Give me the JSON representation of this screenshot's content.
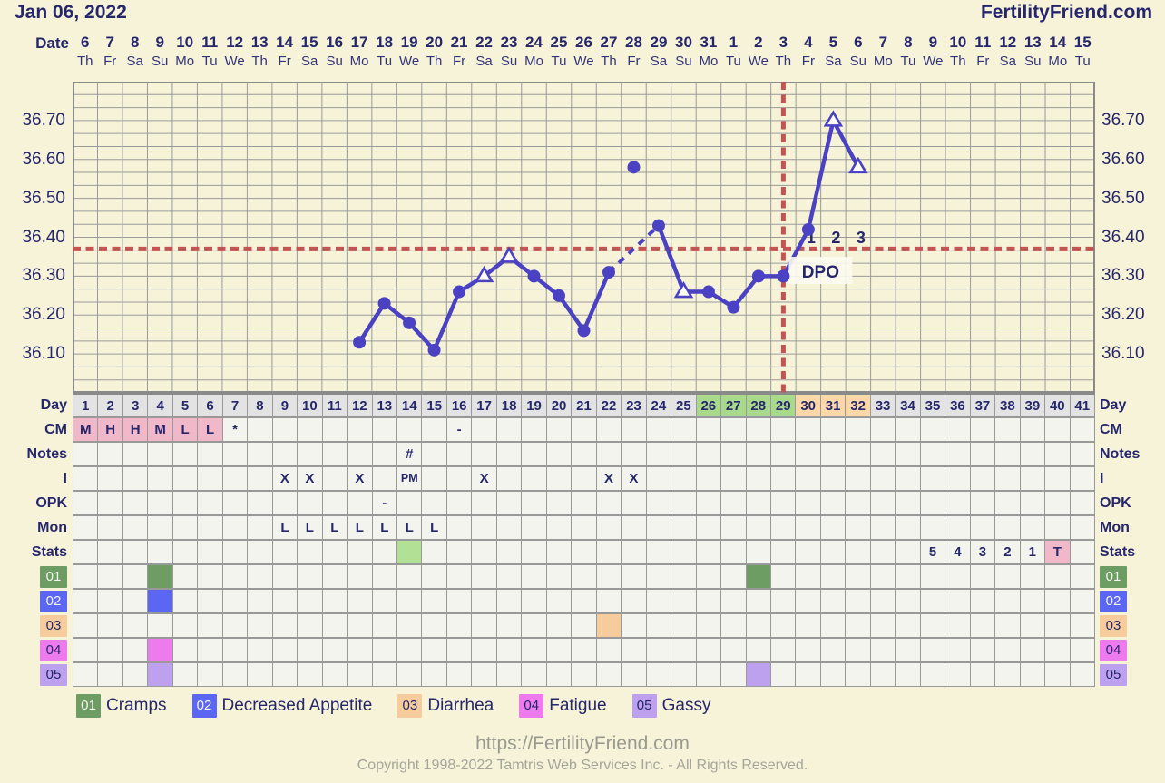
{
  "header": {
    "title": "Jan 06, 2022",
    "brand": "FertilityFriend.com"
  },
  "date_header": {
    "label": "Date",
    "dates": [
      "6",
      "7",
      "8",
      "9",
      "10",
      "11",
      "12",
      "13",
      "14",
      "15",
      "16",
      "17",
      "18",
      "19",
      "20",
      "21",
      "22",
      "23",
      "24",
      "25",
      "26",
      "27",
      "28",
      "29",
      "30",
      "31",
      "1",
      "2",
      "3",
      "4",
      "5",
      "6",
      "7",
      "8",
      "9",
      "10",
      "11",
      "12",
      "13",
      "14",
      "15"
    ],
    "weekdays": [
      "Th",
      "Fr",
      "Sa",
      "Su",
      "Mo",
      "Tu",
      "We",
      "Th",
      "Fr",
      "Sa",
      "Su",
      "Mo",
      "Tu",
      "We",
      "Th",
      "Fr",
      "Sa",
      "Su",
      "Mo",
      "Tu",
      "We",
      "Th",
      "Fr",
      "Sa",
      "Su",
      "Mo",
      "Tu",
      "We",
      "Th",
      "Fr",
      "Sa",
      "Su",
      "Mo",
      "Tu",
      "We",
      "Th",
      "Fr",
      "Sa",
      "Su",
      "Mo",
      "Tu"
    ]
  },
  "chart_data": {
    "type": "line",
    "title": "Basal body temperature chart",
    "ylabel": "Temperature (Celsius)",
    "yticks": [
      "36.70",
      "36.60",
      "36.50",
      "36.40",
      "36.30",
      "36.20",
      "36.10"
    ],
    "ylim": [
      36.0,
      36.8
    ],
    "total_days": 41,
    "points": [
      {
        "day": 12,
        "temp": 36.13,
        "marker": "circle"
      },
      {
        "day": 13,
        "temp": 36.23,
        "marker": "circle"
      },
      {
        "day": 14,
        "temp": 36.18,
        "marker": "circle"
      },
      {
        "day": 15,
        "temp": 36.11,
        "marker": "circle"
      },
      {
        "day": 16,
        "temp": 36.26,
        "marker": "circle"
      },
      {
        "day": 17,
        "temp": 36.3,
        "marker": "triangle"
      },
      {
        "day": 18,
        "temp": 36.35,
        "marker": "triangle"
      },
      {
        "day": 19,
        "temp": 36.3,
        "marker": "circle"
      },
      {
        "day": 20,
        "temp": 36.25,
        "marker": "circle"
      },
      {
        "day": 21,
        "temp": 36.16,
        "marker": "circle"
      },
      {
        "day": 22,
        "temp": 36.31,
        "marker": "circle"
      },
      {
        "day": 23,
        "temp": 36.58,
        "marker": "circle",
        "excluded": true
      },
      {
        "day": 24,
        "temp": 36.43,
        "marker": "circle"
      },
      {
        "day": 25,
        "temp": 36.26,
        "marker": "triangle"
      },
      {
        "day": 26,
        "temp": 36.26,
        "marker": "circle"
      },
      {
        "day": 27,
        "temp": 36.22,
        "marker": "circle"
      },
      {
        "day": 28,
        "temp": 36.3,
        "marker": "circle"
      },
      {
        "day": 29,
        "temp": 36.3,
        "marker": "circle"
      },
      {
        "day": 30,
        "temp": 36.42,
        "marker": "circle"
      },
      {
        "day": 31,
        "temp": 36.7,
        "marker": "triangle"
      },
      {
        "day": 32,
        "temp": 36.58,
        "marker": "triangle"
      }
    ],
    "dashed_segments": [
      [
        22,
        24
      ]
    ],
    "coverline_temp": 36.37,
    "ovulation_day": 29,
    "dpo": {
      "label": "DPO",
      "numbers": [
        {
          "day": 30,
          "text": "1"
        },
        {
          "day": 31,
          "text": "2"
        },
        {
          "day": 32,
          "text": "3"
        }
      ]
    },
    "legend_position": "none",
    "grid": true
  },
  "table": {
    "day_row": {
      "label": "Day",
      "count": 41,
      "green_days": [
        26,
        27,
        28,
        29
      ],
      "peach_days": [
        30,
        31,
        32
      ]
    },
    "rows": [
      {
        "id": "cm",
        "label": "CM",
        "cells": [
          {
            "day": 1,
            "text": "M",
            "bg": "pink"
          },
          {
            "day": 2,
            "text": "H",
            "bg": "pink"
          },
          {
            "day": 3,
            "text": "H",
            "bg": "pink"
          },
          {
            "day": 4,
            "text": "M",
            "bg": "pink"
          },
          {
            "day": 5,
            "text": "L",
            "bg": "pink"
          },
          {
            "day": 6,
            "text": "L",
            "bg": "pink"
          },
          {
            "day": 7,
            "text": "*"
          },
          {
            "day": 16,
            "text": "-"
          }
        ]
      },
      {
        "id": "notes",
        "label": "Notes",
        "cells": [
          {
            "day": 14,
            "text": "#"
          }
        ]
      },
      {
        "id": "i",
        "label": "I",
        "cells": [
          {
            "day": 9,
            "text": "X"
          },
          {
            "day": 10,
            "text": "X"
          },
          {
            "day": 12,
            "text": "X"
          },
          {
            "day": 14,
            "text": "PM",
            "small": true
          },
          {
            "day": 17,
            "text": "X"
          },
          {
            "day": 22,
            "text": "X"
          },
          {
            "day": 23,
            "text": "X"
          }
        ]
      },
      {
        "id": "opk",
        "label": "OPK",
        "cells": [
          {
            "day": 13,
            "text": "-"
          }
        ]
      },
      {
        "id": "mon",
        "label": "Mon",
        "cells": [
          {
            "day": 9,
            "text": "L"
          },
          {
            "day": 10,
            "text": "L"
          },
          {
            "day": 11,
            "text": "L"
          },
          {
            "day": 12,
            "text": "L"
          },
          {
            "day": 13,
            "text": "L"
          },
          {
            "day": 14,
            "text": "L"
          },
          {
            "day": 15,
            "text": "L"
          }
        ]
      },
      {
        "id": "stats",
        "label": "Stats",
        "cells": [
          {
            "day": 14,
            "bg": "stats-green"
          },
          {
            "day": 35,
            "text": "5"
          },
          {
            "day": 36,
            "text": "4"
          },
          {
            "day": 37,
            "text": "3"
          },
          {
            "day": 38,
            "text": "2"
          },
          {
            "day": 39,
            "text": "1"
          },
          {
            "day": 40,
            "text": "T",
            "bg": "pink"
          }
        ]
      },
      {
        "id": "sym1",
        "label": "01",
        "badge": "sym1",
        "badge_text_white": true,
        "cells": [
          {
            "day": 4,
            "bg": "sym1"
          },
          {
            "day": 28,
            "bg": "sym1"
          }
        ]
      },
      {
        "id": "sym2",
        "label": "02",
        "badge": "sym2",
        "badge_text_white": true,
        "cells": [
          {
            "day": 4,
            "bg": "sym2"
          }
        ]
      },
      {
        "id": "sym3",
        "label": "03",
        "badge": "sym3",
        "badge_text_white": false,
        "cells": [
          {
            "day": 22,
            "bg": "sym3"
          }
        ]
      },
      {
        "id": "sym4",
        "label": "04",
        "badge": "sym4",
        "badge_text_white": false,
        "cells": [
          {
            "day": 4,
            "bg": "sym4"
          }
        ]
      },
      {
        "id": "sym5",
        "label": "05",
        "badge": "sym5",
        "badge_text_white": false,
        "cells": [
          {
            "day": 4,
            "bg": "sym5"
          },
          {
            "day": 28,
            "bg": "sym5"
          }
        ]
      }
    ]
  },
  "legend": [
    {
      "code": "01",
      "label": "Cramps",
      "color": "sym1",
      "text_white": true
    },
    {
      "code": "02",
      "label": "Decreased Appetite",
      "color": "sym2",
      "text_white": true
    },
    {
      "code": "03",
      "label": "Diarrhea",
      "color": "sym3",
      "text_white": false
    },
    {
      "code": "04",
      "label": "Fatigue",
      "color": "sym4",
      "text_white": false
    },
    {
      "code": "05",
      "label": "Gassy",
      "color": "sym5",
      "text_white": false
    }
  ],
  "footer": {
    "url": "https://FertilityFriend.com",
    "copyright": "Copyright 1998-2022 Tamtris Web Services Inc. - All Rights Reserved."
  },
  "colors": {
    "navy_text": "#26266b",
    "background_cream": "#f6f3d8",
    "cell_background": "#f4f4ee",
    "grid_line": "#9a9a9a",
    "temp_line": "#4a42c2",
    "coverline_red": "#c45454",
    "day_gray": "#e3e3e3",
    "day_green": "#a9da8c",
    "day_peach": "#fcd8a8",
    "cm_pink": "#f1b8ca",
    "stats_green": "#b2e095",
    "sym1_green": "#6d9d62",
    "sym2_blue": "#5b67f2",
    "sym3_peach": "#f6cc9d",
    "sym4_magenta": "#ee7bee",
    "sym5_purple": "#bda1ef",
    "footer_gray": "#99998f"
  }
}
